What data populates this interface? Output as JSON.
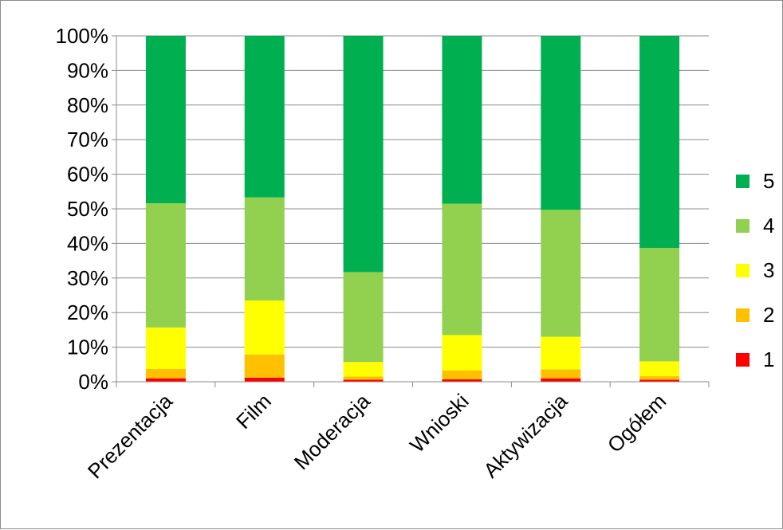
{
  "chart_data": {
    "type": "bar",
    "stacked": true,
    "percent_stacked": true,
    "categories": [
      "Prezentacja",
      "Film",
      "Moderacja",
      "Wnioski",
      "Aktywizacja",
      "Ogółem"
    ],
    "series": [
      {
        "name": "1",
        "color": "#ff0000",
        "values": [
          1.0,
          1.2,
          0.6,
          0.7,
          1.0,
          0.6
        ]
      },
      {
        "name": "2",
        "color": "#ffc000",
        "values": [
          2.7,
          6.7,
          0.9,
          2.6,
          2.6,
          1.0
        ]
      },
      {
        "name": "3",
        "color": "#ffff00",
        "values": [
          12.0,
          15.6,
          4.2,
          10.2,
          9.4,
          4.3
        ]
      },
      {
        "name": "4",
        "color": "#92d050",
        "values": [
          35.9,
          29.8,
          26.0,
          38.0,
          36.7,
          32.8
        ]
      },
      {
        "name": "5",
        "color": "#00b050",
        "values": [
          48.4,
          46.7,
          68.3,
          48.5,
          50.3,
          61.3
        ]
      }
    ],
    "y_ticks": [
      "0%",
      "10%",
      "20%",
      "30%",
      "40%",
      "50%",
      "60%",
      "70%",
      "80%",
      "90%",
      "100%"
    ],
    "ylim": [
      0,
      100
    ],
    "grid": true,
    "legend_position": "right",
    "legend_order": [
      "5",
      "4",
      "3",
      "2",
      "1"
    ]
  }
}
